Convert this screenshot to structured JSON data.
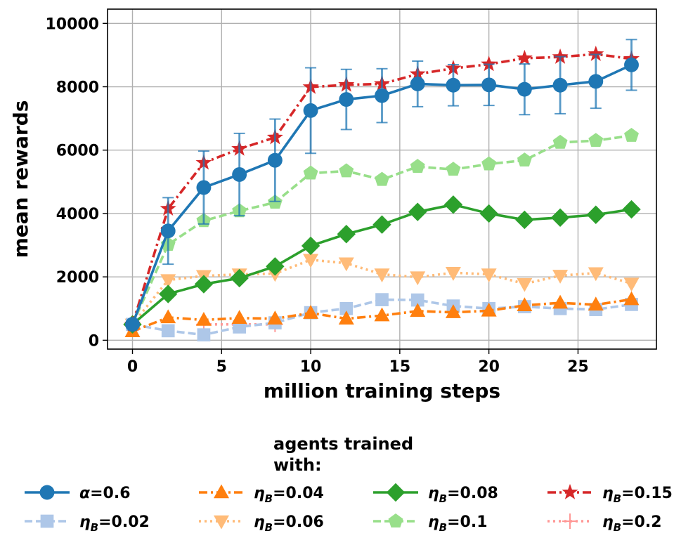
{
  "chart_data": {
    "type": "line",
    "xlabel": "million training steps",
    "ylabel": "mean rewards",
    "xlim": [
      -1.4,
      29.4
    ],
    "ylim": [
      -280,
      10450
    ],
    "xticks": [
      0,
      5,
      10,
      15,
      20,
      25
    ],
    "yticks": [
      0,
      2000,
      4000,
      6000,
      8000,
      10000
    ],
    "grid": true,
    "legend": {
      "title_line1": "agents trained",
      "title_line2": "with:",
      "placement": "bottom, outside plot, 4 columns"
    },
    "x": [
      0,
      2,
      4,
      6,
      8,
      10,
      12,
      14,
      16,
      18,
      20,
      22,
      24,
      26,
      28
    ],
    "series": [
      {
        "name": "alpha_0.6",
        "label_symbol": "α",
        "label_sub": "",
        "label_value": "=0.6",
        "color": "#1f77b4",
        "dash": "solid",
        "marker": "circle",
        "values": [
          500,
          3450,
          4820,
          5230,
          5680,
          7250,
          7600,
          7720,
          8090,
          8050,
          8060,
          7920,
          8050,
          8170,
          8690
        ],
        "errors": [
          100,
          1050,
          1150,
          1300,
          1300,
          1350,
          950,
          850,
          720,
          650,
          650,
          800,
          900,
          850,
          800
        ]
      },
      {
        "name": "eta_0.02",
        "label_symbol": "η",
        "label_sub": "B",
        "label_value": "=0.02",
        "color": "#aec7e8",
        "dash": "dashed",
        "marker": "square",
        "values": [
          500,
          300,
          170,
          420,
          550,
          870,
          1000,
          1280,
          1270,
          1080,
          1000,
          1060,
          1000,
          970,
          1130
        ]
      },
      {
        "name": "eta_0.04",
        "label_symbol": "η",
        "label_sub": "B",
        "label_value": "=0.04",
        "color": "#ff7f0e",
        "dash": "dashdot",
        "marker": "triangle-up",
        "values": [
          280,
          720,
          640,
          700,
          680,
          860,
          680,
          780,
          920,
          880,
          930,
          1100,
          1180,
          1120,
          1290
        ]
      },
      {
        "name": "eta_0.06",
        "label_symbol": "η",
        "label_sub": "B",
        "label_value": "=0.06",
        "color": "#ffbb78",
        "dash": "dotted",
        "marker": "triangle-down",
        "values": [
          500,
          1900,
          2030,
          2080,
          2100,
          2540,
          2430,
          2080,
          1990,
          2130,
          2080,
          1780,
          2040,
          2120,
          1790
        ]
      },
      {
        "name": "eta_0.08",
        "label_symbol": "η",
        "label_sub": "B",
        "label_value": "=0.08",
        "color": "#2ca02c",
        "dash": "solid",
        "marker": "diamond",
        "values": [
          500,
          1460,
          1770,
          1960,
          2330,
          2980,
          3350,
          3650,
          4050,
          4280,
          4000,
          3800,
          3870,
          3960,
          4130
        ]
      },
      {
        "name": "eta_0.1",
        "label_symbol": "η",
        "label_sub": "B",
        "label_value": "=0.1",
        "color": "#98df8a",
        "dash": "dashed",
        "marker": "pentagon",
        "values": [
          500,
          3020,
          3770,
          4080,
          4350,
          5270,
          5340,
          5070,
          5480,
          5390,
          5560,
          5680,
          6240,
          6300,
          6460
        ]
      },
      {
        "name": "eta_0.15",
        "label_symbol": "η",
        "label_sub": "B",
        "label_value": "=0.15",
        "color": "#d62728",
        "dash": "dashdot",
        "marker": "star",
        "values": [
          500,
          4150,
          5600,
          6040,
          6400,
          7990,
          8060,
          8090,
          8400,
          8580,
          8710,
          8900,
          8940,
          9030,
          8880
        ]
      },
      {
        "name": "eta_0.2",
        "label_symbol": "η",
        "label_sub": "B",
        "label_value": "=0.2",
        "color": "#ff9896",
        "dash": "dotted",
        "marker": "plus",
        "values": [
          500,
          null,
          500,
          500,
          500,
          null,
          null,
          null,
          null,
          null,
          null,
          null,
          null,
          null,
          null
        ]
      }
    ]
  }
}
